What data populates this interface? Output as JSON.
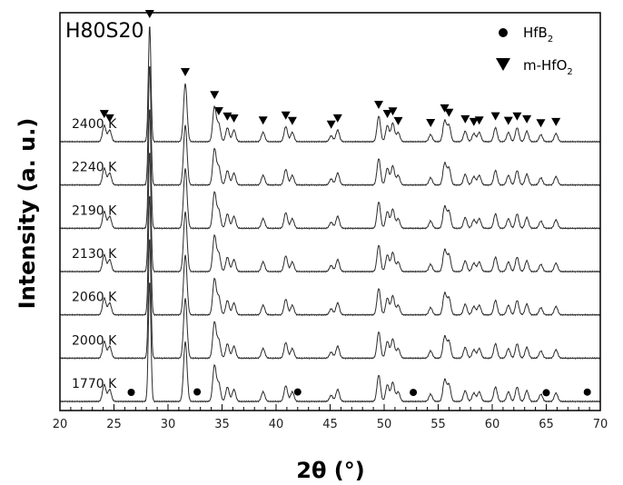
{
  "chart_data": {
    "type": "line",
    "title": "H80S20",
    "xlabel": "2θ (°)",
    "ylabel": "Intensity (a. u.)",
    "xlim": [
      20,
      70
    ],
    "xticks": [
      "20",
      "25",
      "30",
      "35",
      "40",
      "45",
      "50",
      "55",
      "60",
      "65",
      "70"
    ],
    "x_major_step": 5,
    "x_minor_step": 1,
    "colors": {
      "trace": "#2b2b2b",
      "axis": "#000000"
    },
    "legend": {
      "placement": "top-right",
      "entries": [
        {
          "name": "HfB",
          "sub": "2",
          "marker": "circle"
        },
        {
          "name": "m-HfO",
          "sub": "2",
          "marker": "down-triangle"
        }
      ]
    },
    "peak_positions": [
      24.1,
      24.6,
      28.3,
      31.6,
      34.3,
      34.7,
      35.5,
      36.1,
      38.8,
      40.9,
      41.5,
      45.1,
      45.7,
      49.5,
      50.3,
      50.8,
      51.3,
      54.3,
      55.6,
      56.0,
      57.5,
      58.3,
      58.8,
      60.3,
      61.5,
      62.3,
      63.2,
      64.5,
      65.9
    ],
    "series": [
      {
        "name": "2400 K",
        "heights": [
          0.14,
          0.1,
          1.0,
          0.5,
          0.3,
          0.15,
          0.12,
          0.1,
          0.08,
          0.13,
          0.08,
          0.05,
          0.1,
          0.22,
          0.14,
          0.16,
          0.08,
          0.06,
          0.18,
          0.14,
          0.09,
          0.07,
          0.08,
          0.12,
          0.08,
          0.12,
          0.09,
          0.06,
          0.07
        ]
      },
      {
        "name": "2240 K",
        "heights": [
          0.14,
          0.1,
          1.0,
          0.5,
          0.3,
          0.15,
          0.12,
          0.1,
          0.08,
          0.13,
          0.08,
          0.05,
          0.1,
          0.22,
          0.14,
          0.16,
          0.08,
          0.06,
          0.18,
          0.14,
          0.09,
          0.07,
          0.08,
          0.12,
          0.08,
          0.12,
          0.09,
          0.06,
          0.07
        ]
      },
      {
        "name": "2190 K",
        "heights": [
          0.14,
          0.1,
          1.0,
          0.5,
          0.3,
          0.15,
          0.12,
          0.1,
          0.08,
          0.13,
          0.08,
          0.05,
          0.1,
          0.22,
          0.14,
          0.16,
          0.08,
          0.06,
          0.18,
          0.14,
          0.09,
          0.07,
          0.08,
          0.12,
          0.08,
          0.12,
          0.09,
          0.06,
          0.07
        ]
      },
      {
        "name": "2130 K",
        "heights": [
          0.14,
          0.1,
          1.0,
          0.5,
          0.3,
          0.15,
          0.12,
          0.1,
          0.08,
          0.13,
          0.08,
          0.05,
          0.1,
          0.22,
          0.14,
          0.16,
          0.08,
          0.06,
          0.18,
          0.14,
          0.09,
          0.07,
          0.08,
          0.12,
          0.08,
          0.12,
          0.09,
          0.06,
          0.07
        ]
      },
      {
        "name": "2060 K",
        "heights": [
          0.14,
          0.1,
          1.0,
          0.5,
          0.3,
          0.15,
          0.12,
          0.1,
          0.08,
          0.13,
          0.08,
          0.05,
          0.1,
          0.22,
          0.14,
          0.16,
          0.08,
          0.06,
          0.18,
          0.14,
          0.09,
          0.07,
          0.08,
          0.12,
          0.08,
          0.12,
          0.09,
          0.06,
          0.07
        ]
      },
      {
        "name": "2000 K",
        "heights": [
          0.14,
          0.1,
          1.0,
          0.5,
          0.3,
          0.15,
          0.12,
          0.1,
          0.08,
          0.13,
          0.08,
          0.05,
          0.1,
          0.22,
          0.14,
          0.16,
          0.08,
          0.06,
          0.18,
          0.14,
          0.09,
          0.07,
          0.08,
          0.12,
          0.08,
          0.12,
          0.09,
          0.06,
          0.07
        ]
      },
      {
        "name": "1770 K",
        "heights": [
          0.14,
          0.1,
          1.0,
          0.5,
          0.3,
          0.15,
          0.12,
          0.1,
          0.08,
          0.13,
          0.08,
          0.05,
          0.1,
          0.22,
          0.14,
          0.16,
          0.08,
          0.06,
          0.18,
          0.14,
          0.09,
          0.07,
          0.08,
          0.12,
          0.08,
          0.12,
          0.09,
          0.06,
          0.07
        ]
      }
    ],
    "annotations": {
      "m_hfo2_triangles_on": "2400 K",
      "m_hfo2_triangles": [
        24.1,
        24.6,
        28.3,
        31.6,
        34.3,
        34.7,
        35.5,
        36.1,
        38.8,
        40.9,
        41.5,
        45.1,
        45.7,
        49.5,
        50.3,
        50.8,
        51.3,
        54.3,
        55.6,
        56.0,
        57.5,
        58.3,
        58.8,
        60.3,
        61.5,
        62.3,
        63.2,
        64.5,
        65.9
      ],
      "hfb2_circles_on": "1770 K",
      "hfb2_circles": [
        26.6,
        32.7,
        42.0,
        52.7,
        65.0,
        68.8
      ]
    }
  }
}
